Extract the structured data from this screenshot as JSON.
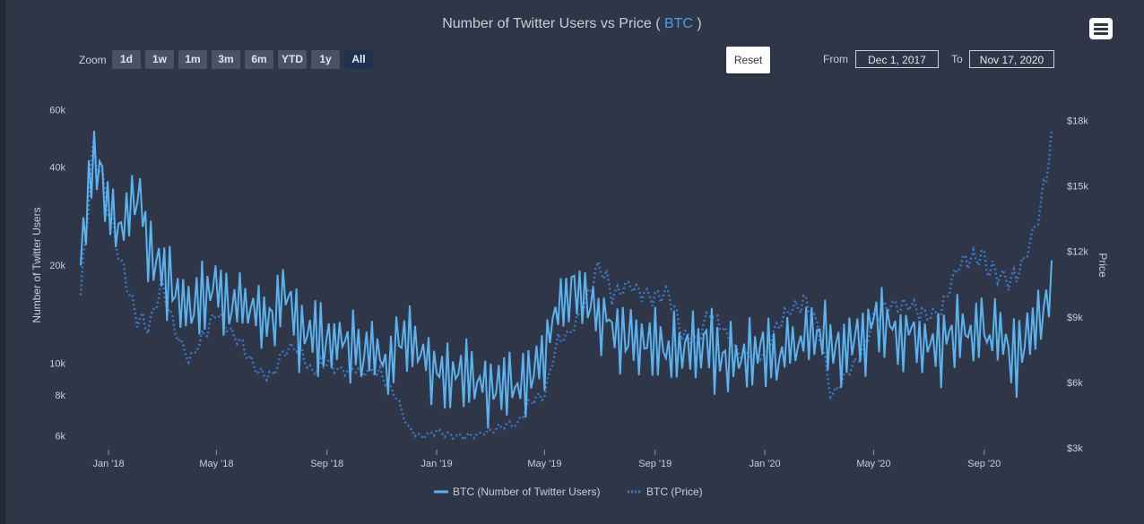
{
  "chart": {
    "title_prefix": "Number of Twitter Users vs Price ( ",
    "title_coin": "BTC",
    "title_suffix": " )",
    "menu_icon": "hamburger-icon"
  },
  "zoom": {
    "label": "Zoom",
    "buttons": [
      "1d",
      "1w",
      "1m",
      "3m",
      "6m",
      "YTD",
      "1y",
      "All"
    ],
    "active": "All"
  },
  "reset_label": "Reset",
  "range": {
    "from_label": "From",
    "from_value": "Dec 1, 2017",
    "to_label": "To",
    "to_value": "Nov 17, 2020"
  },
  "colors": {
    "background": "#2e3648",
    "users_line": "#5ab3ee",
    "price_line": "#3a78c9",
    "accent": "#4e9de6"
  },
  "chart_data": {
    "type": "line",
    "title": "Number of Twitter Users vs Price ( BTC )",
    "xlabel": "",
    "ylabel": "Number of Twitter Users",
    "y2label": "Price",
    "x_ticks": [
      "Jan '18",
      "May '18",
      "Sep '18",
      "Jan '19",
      "May '19",
      "Sep '19",
      "Jan '20",
      "May '20",
      "Sep '20"
    ],
    "y_ticks": [
      "6k",
      "8k",
      "10k",
      "20k",
      "40k",
      "60k"
    ],
    "y2_ticks": [
      "$3k",
      "$6k",
      "$9k",
      "$12k",
      "$15k",
      "$18k"
    ],
    "y_scale": "log",
    "y_range": [
      5500,
      65000
    ],
    "y2_range": [
      3000,
      19000
    ],
    "x_range": [
      "2017-12-01",
      "2020-11-17"
    ],
    "legend_position": "bottom",
    "series": [
      {
        "name": "BTC (Number of Twitter Users)",
        "axis": "left",
        "style": "solid",
        "x": [
          "2017-12-01",
          "2017-12-15",
          "2018-01-01",
          "2018-01-15",
          "2018-02-01",
          "2018-02-15",
          "2018-03-01",
          "2018-03-15",
          "2018-04-01",
          "2018-04-15",
          "2018-05-01",
          "2018-05-15",
          "2018-06-01",
          "2018-06-15",
          "2018-07-01",
          "2018-07-15",
          "2018-08-01",
          "2018-08-15",
          "2018-09-01",
          "2018-09-15",
          "2018-10-01",
          "2018-10-15",
          "2018-11-01",
          "2018-11-15",
          "2018-12-01",
          "2018-12-15",
          "2019-01-01",
          "2019-01-15",
          "2019-02-01",
          "2019-02-15",
          "2019-03-01",
          "2019-03-15",
          "2019-04-01",
          "2019-04-15",
          "2019-05-01",
          "2019-05-15",
          "2019-06-01",
          "2019-06-15",
          "2019-07-01",
          "2019-07-15",
          "2019-08-01",
          "2019-08-15",
          "2019-09-01",
          "2019-09-15",
          "2019-10-01",
          "2019-10-15",
          "2019-11-01",
          "2019-11-15",
          "2019-12-01",
          "2019-12-15",
          "2020-01-01",
          "2020-01-15",
          "2020-02-01",
          "2020-02-15",
          "2020-03-01",
          "2020-03-15",
          "2020-04-01",
          "2020-04-15",
          "2020-05-01",
          "2020-05-15",
          "2020-06-01",
          "2020-06-15",
          "2020-07-01",
          "2020-07-15",
          "2020-08-01",
          "2020-08-15",
          "2020-09-01",
          "2020-09-15",
          "2020-10-01",
          "2020-10-15",
          "2020-11-01",
          "2020-11-17"
        ],
        "values": [
          20000,
          45000,
          30000,
          26000,
          35000,
          22000,
          20000,
          17000,
          15000,
          16000,
          17500,
          16000,
          15000,
          14500,
          14000,
          15500,
          13500,
          12500,
          12000,
          11500,
          11500,
          11000,
          10500,
          11000,
          13000,
          11000,
          10000,
          9500,
          9200,
          9000,
          9000,
          8800,
          8500,
          8800,
          10500,
          14000,
          17000,
          15500,
          14000,
          13000,
          12500,
          12000,
          11500,
          11000,
          11500,
          12000,
          11500,
          11000,
          10500,
          11000,
          10500,
          10800,
          11500,
          12000,
          12500,
          11500,
          11000,
          12500,
          13000,
          13500,
          12500,
          12000,
          12000,
          11500,
          13500,
          13000,
          12500,
          12000,
          11000,
          11500,
          14000,
          19000
        ]
      },
      {
        "name": "BTC (Price)",
        "axis": "right",
        "style": "dotted",
        "x": [
          "2017-12-01",
          "2017-12-15",
          "2018-01-01",
          "2018-01-15",
          "2018-02-01",
          "2018-02-15",
          "2018-03-01",
          "2018-03-15",
          "2018-04-01",
          "2018-04-15",
          "2018-05-01",
          "2018-05-15",
          "2018-06-01",
          "2018-06-15",
          "2018-07-01",
          "2018-07-15",
          "2018-08-01",
          "2018-08-15",
          "2018-09-01",
          "2018-09-15",
          "2018-10-01",
          "2018-10-15",
          "2018-11-01",
          "2018-11-15",
          "2018-12-01",
          "2018-12-15",
          "2019-01-01",
          "2019-01-15",
          "2019-02-01",
          "2019-02-15",
          "2019-03-01",
          "2019-03-15",
          "2019-04-01",
          "2019-04-15",
          "2019-05-01",
          "2019-05-15",
          "2019-06-01",
          "2019-06-15",
          "2019-07-01",
          "2019-07-15",
          "2019-08-01",
          "2019-08-15",
          "2019-09-01",
          "2019-09-15",
          "2019-10-01",
          "2019-10-15",
          "2019-11-01",
          "2019-11-15",
          "2019-12-01",
          "2019-12-15",
          "2020-01-01",
          "2020-01-15",
          "2020-02-01",
          "2020-02-15",
          "2020-03-01",
          "2020-03-15",
          "2020-04-01",
          "2020-04-15",
          "2020-05-01",
          "2020-05-15",
          "2020-06-01",
          "2020-06-15",
          "2020-07-01",
          "2020-07-15",
          "2020-08-01",
          "2020-08-15",
          "2020-09-01",
          "2020-09-15",
          "2020-10-01",
          "2020-10-15",
          "2020-11-01",
          "2020-11-17"
        ],
        "values": [
          10000,
          17000,
          14000,
          11500,
          9000,
          8500,
          10500,
          8500,
          7000,
          8000,
          9200,
          8500,
          7500,
          6500,
          6300,
          7300,
          7700,
          6400,
          7000,
          6500,
          6600,
          6500,
          6400,
          5500,
          3900,
          3500,
          3800,
          3600,
          3500,
          3600,
          3800,
          4000,
          4100,
          5100,
          5400,
          7800,
          8400,
          9500,
          11500,
          10000,
          10500,
          10200,
          9800,
          10200,
          8300,
          7900,
          9200,
          8600,
          7400,
          7200,
          7200,
          8700,
          9400,
          9700,
          8500,
          5300,
          6400,
          7100,
          8800,
          9500,
          9600,
          9400,
          9100,
          9200,
          11300,
          11800,
          11600,
          10800,
          10700,
          11500,
          13700,
          17800
        ]
      }
    ]
  }
}
